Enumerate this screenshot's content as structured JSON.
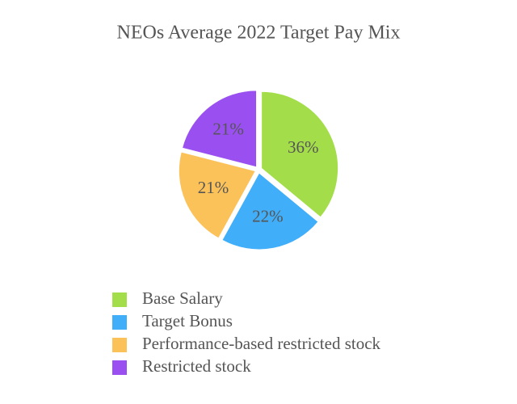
{
  "chart_data": {
    "type": "pie",
    "title": "NEOs Average 2022 Target Pay Mix",
    "categories": [
      "Base Salary",
      "Target Bonus",
      "Performance-based restricted stock",
      "Restricted stock"
    ],
    "values": [
      36,
      22,
      21,
      21
    ],
    "value_labels": [
      "36%",
      "22%",
      "21%",
      "21%"
    ],
    "colors": [
      "#a3de4a",
      "#40aef9",
      "#fcc25a",
      "#9a50f0"
    ]
  }
}
